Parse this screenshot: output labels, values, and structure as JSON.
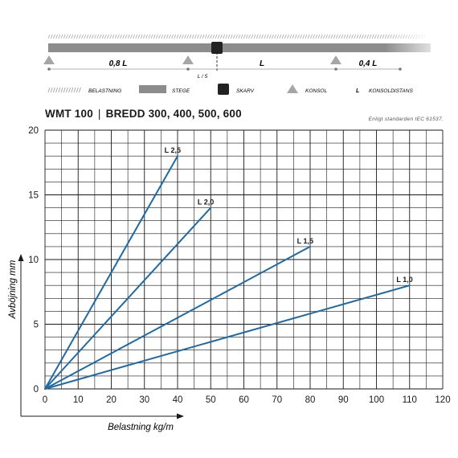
{
  "diagram": {
    "spans": [
      {
        "label": "0,8 L"
      },
      {
        "label": "L"
      },
      {
        "label": "0,4 L"
      }
    ],
    "splice_offset_label": "L / 5",
    "legend": [
      {
        "key": "load",
        "label": "BELASTNING",
        "icon": "hatched-load-icon"
      },
      {
        "key": "tray",
        "label": "STEGE",
        "icon": "gray-bar-icon",
        "color": "#8c8c8c"
      },
      {
        "key": "splice",
        "label": "SKARV",
        "icon": "black-square-icon",
        "color": "#222222"
      },
      {
        "key": "support",
        "label": "KONSOL",
        "icon": "triangle-support-icon",
        "color": "#a6a6a6"
      },
      {
        "key": "span",
        "label": "KONSOLDISTANS",
        "symbol": "L"
      }
    ]
  },
  "header": {
    "model": "WMT 100",
    "widths": "BREDD 300, 400, 500, 600",
    "standard_note": "Enligt standarden IEC 61537."
  },
  "chart_data": {
    "type": "line",
    "xlabel": "Belastning kg/m",
    "ylabel": "Avböjning mm",
    "xlim": [
      0,
      120
    ],
    "ylim": [
      0,
      20
    ],
    "xticks": [
      0,
      10,
      20,
      30,
      40,
      50,
      60,
      70,
      80,
      90,
      100,
      110,
      120
    ],
    "yticks": [
      0,
      5,
      10,
      15,
      20
    ],
    "grid": true,
    "line_color": "#1f6aa5",
    "series": [
      {
        "name": "L 2,5",
        "x": [
          0,
          40
        ],
        "y": [
          0,
          18
        ]
      },
      {
        "name": "L 2,0",
        "x": [
          0,
          50
        ],
        "y": [
          0,
          14
        ]
      },
      {
        "name": "L 1,5",
        "x": [
          0,
          80
        ],
        "y": [
          0,
          11
        ]
      },
      {
        "name": "L 1,0",
        "x": [
          0,
          110
        ],
        "y": [
          0,
          8
        ]
      }
    ]
  }
}
